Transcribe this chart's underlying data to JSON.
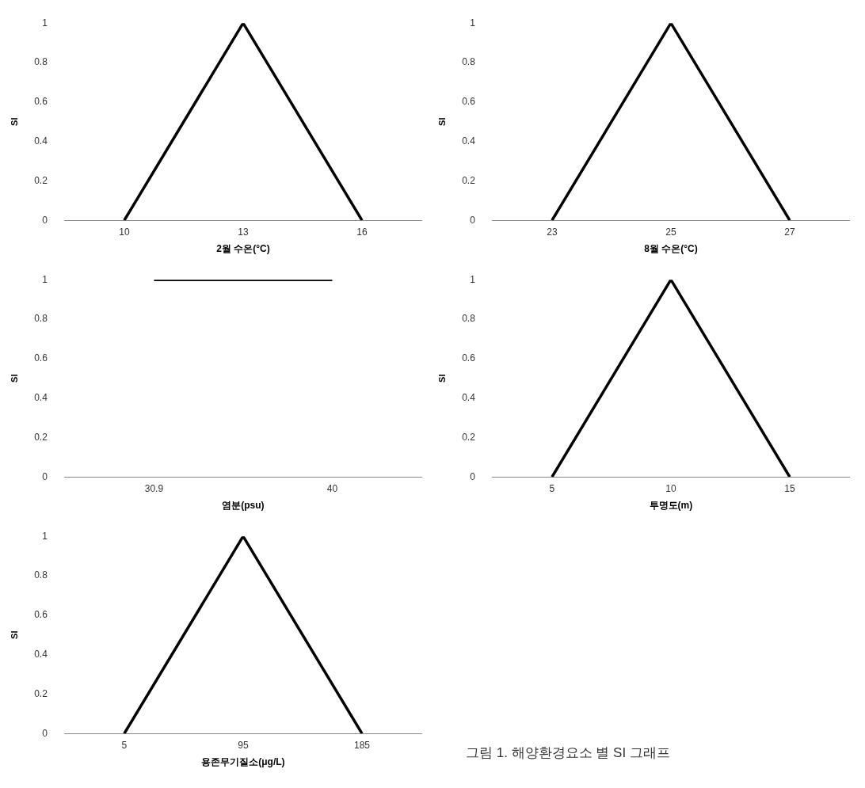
{
  "chart_data": [
    {
      "type": "line",
      "categories": [
        "10",
        "13",
        "16"
      ],
      "values": [
        0,
        1,
        0
      ],
      "color": "#000000",
      "xlabel": "2월 수온(°C)",
      "ylabel": "SI",
      "ylim": [
        0,
        1
      ],
      "yticks": [
        0,
        0.2,
        0.4,
        0.6,
        0.8,
        1
      ],
      "marker": "none"
    },
    {
      "type": "line",
      "categories": [
        "23",
        "25",
        "27"
      ],
      "values": [
        0,
        1,
        0
      ],
      "color": "#000000",
      "xlabel": "8월 수온(°C)",
      "ylabel": "SI",
      "ylim": [
        0,
        1
      ],
      "yticks": [
        0,
        0.2,
        0.4,
        0.6,
        0.8,
        1
      ],
      "marker": "none"
    },
    {
      "type": "line",
      "categories": [
        "30.9",
        "40"
      ],
      "values": [
        1,
        1
      ],
      "color": "#000000",
      "xlabel": "염분(psu)",
      "ylabel": "SI",
      "ylim": [
        0,
        1
      ],
      "yticks": [
        0,
        0.2,
        0.4,
        0.6,
        0.8,
        1
      ],
      "marker": "none"
    },
    {
      "type": "line",
      "categories": [
        "5",
        "10",
        "15"
      ],
      "values": [
        0,
        1,
        0
      ],
      "color": "#000000",
      "xlabel": "투명도(m)",
      "ylabel": "SI",
      "ylim": [
        0,
        1
      ],
      "yticks": [
        0,
        0.2,
        0.4,
        0.6,
        0.8,
        1
      ],
      "marker": "none"
    },
    {
      "type": "line",
      "categories": [
        "5",
        "95",
        "185"
      ],
      "values": [
        0,
        1,
        0
      ],
      "color": "#000000",
      "xlabel": "용존무기질소(μg/L)",
      "ylabel": "SI",
      "ylim": [
        0,
        1
      ],
      "yticks": [
        0,
        0.2,
        0.4,
        0.6,
        0.8,
        1
      ],
      "marker": "none"
    },
    {
      "type": "other",
      "annotations": [
        "그림 1. 해양환경요소 별 SI 그래프"
      ]
    }
  ]
}
